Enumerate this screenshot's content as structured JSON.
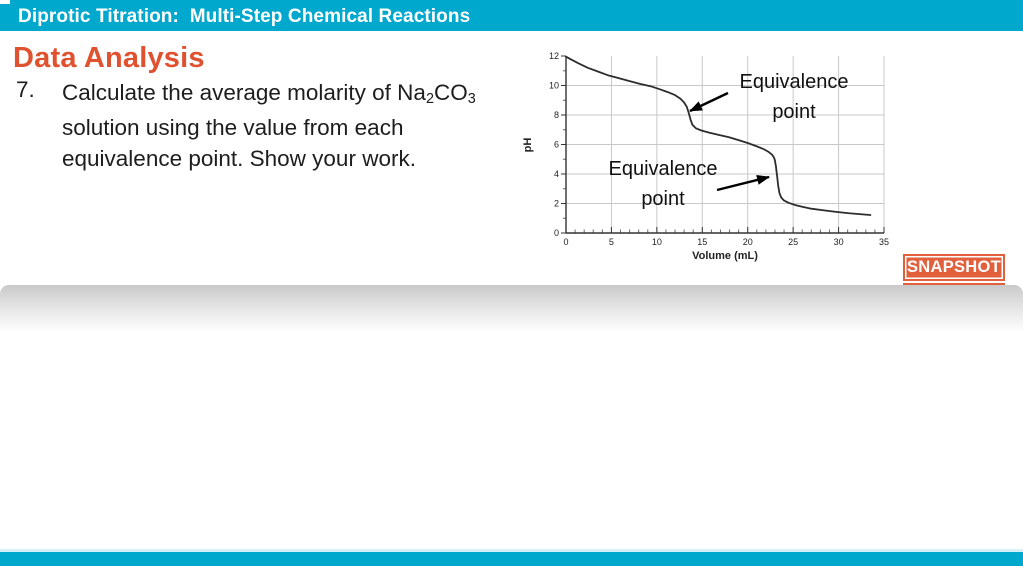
{
  "slide": {
    "title": "Diprotic Titration:  Multi-Step Chemical Reactions",
    "section_heading": "Data Analysis",
    "question": {
      "number": "7.",
      "line1_pre": "Calculate the average molarity of Na",
      "line1_sub1": "2",
      "line1_mid": "CO",
      "line1_sub2": "3",
      "line2": "solution using the value from each",
      "line3": "equivalence point. Show your work."
    },
    "snapshot_label": "SNAPSHOT",
    "colors": {
      "teal": "#00A8CE",
      "heading_orange": "#E0522F",
      "snapshot_orange": "#E2603C"
    }
  },
  "chart_data": {
    "type": "line",
    "title": "",
    "xlabel": "Volume (mL)",
    "ylabel": "pH",
    "xlim": [
      0,
      35
    ],
    "ylim": [
      0,
      12
    ],
    "x_ticks": [
      0,
      5,
      10,
      15,
      20,
      25,
      30,
      35
    ],
    "y_ticks": [
      0,
      2,
      4,
      6,
      8,
      10,
      12
    ],
    "x_minor_step": 1,
    "y_minor_step": 1,
    "grid": true,
    "legend": false,
    "curve_color": "#2d2d2d",
    "grid_color": "#c8c8c8",
    "annotations": [
      {
        "label": "Equivalence point",
        "target_x": 13.5,
        "target_y": 8.1
      },
      {
        "label": "Equivalence point",
        "target_x": 22.9,
        "target_y": 3.9
      }
    ],
    "curve": [
      [
        0,
        11.95
      ],
      [
        0.6,
        11.75
      ],
      [
        1.4,
        11.5
      ],
      [
        2.4,
        11.2
      ],
      [
        3.5,
        10.95
      ],
      [
        4.6,
        10.7
      ],
      [
        5.8,
        10.5
      ],
      [
        7,
        10.3
      ],
      [
        8.2,
        10.1
      ],
      [
        9.3,
        9.95
      ],
      [
        10.3,
        9.75
      ],
      [
        11.2,
        9.55
      ],
      [
        12,
        9.35
      ],
      [
        12.6,
        9.1
      ],
      [
        13,
        8.85
      ],
      [
        13.3,
        8.55
      ],
      [
        13.5,
        8.15
      ],
      [
        13.7,
        7.7
      ],
      [
        13.9,
        7.35
      ],
      [
        14.3,
        7.1
      ],
      [
        14.9,
        6.95
      ],
      [
        15.8,
        6.8
      ],
      [
        16.8,
        6.65
      ],
      [
        17.9,
        6.5
      ],
      [
        19,
        6.3
      ],
      [
        20,
        6.1
      ],
      [
        20.9,
        5.9
      ],
      [
        21.7,
        5.7
      ],
      [
        22.3,
        5.5
      ],
      [
        22.7,
        5.3
      ],
      [
        22.9,
        5.1
      ],
      [
        23,
        4.9
      ],
      [
        23.05,
        4.7
      ],
      [
        23.1,
        4.55
      ],
      [
        23.15,
        4.3
      ],
      [
        23.25,
        3.8
      ],
      [
        23.35,
        3.2
      ],
      [
        23.5,
        2.7
      ],
      [
        23.7,
        2.4
      ],
      [
        24,
        2.2
      ],
      [
        24.5,
        2.05
      ],
      [
        25.2,
        1.9
      ],
      [
        26,
        1.78
      ],
      [
        27,
        1.65
      ],
      [
        28.2,
        1.55
      ],
      [
        29.5,
        1.45
      ],
      [
        31,
        1.35
      ],
      [
        32.3,
        1.28
      ],
      [
        33.5,
        1.22
      ]
    ]
  }
}
